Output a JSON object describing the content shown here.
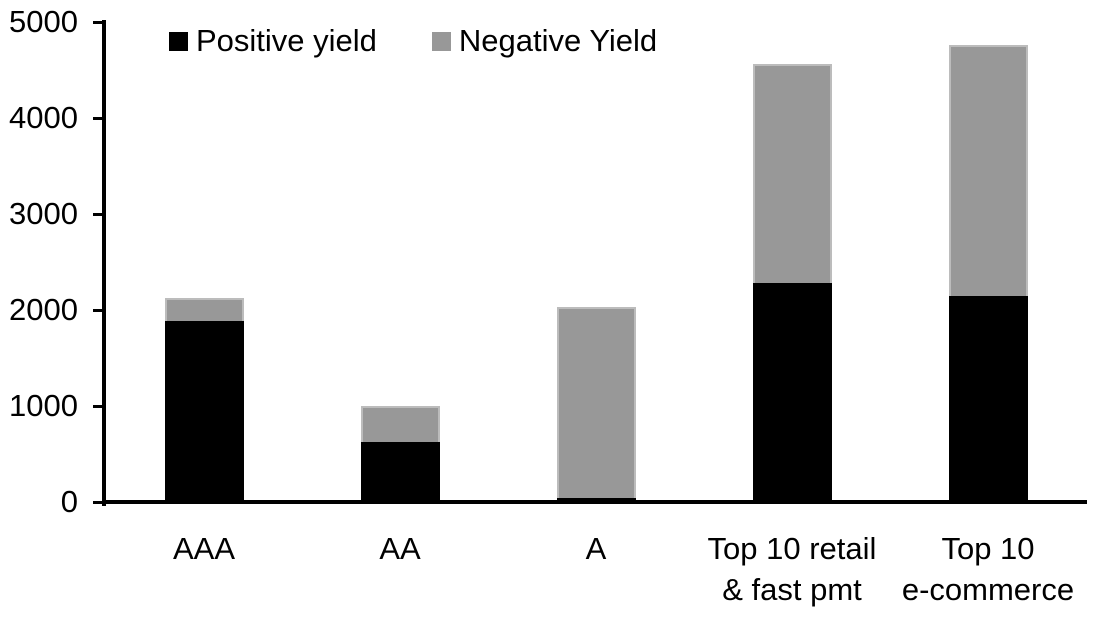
{
  "chart_data": {
    "type": "bar",
    "stacked": true,
    "title": "",
    "xlabel": "",
    "ylabel": "",
    "categories": [
      "AAA",
      "AA",
      "A",
      "Top 10 retail\n& fast pmt",
      "Top 10\ne-commerce"
    ],
    "series": [
      {
        "name": "Positive yield",
        "color": "#000000",
        "values": [
          1890,
          620,
          40,
          2280,
          2150
        ]
      },
      {
        "name": "Negative Yield",
        "color": "#989898",
        "border_color": "#bcbcbc",
        "values": [
          230,
          380,
          1990,
          2280,
          2610
        ]
      }
    ],
    "ylim": [
      0,
      5000
    ],
    "yticks": [
      0,
      1000,
      2000,
      3000,
      4000,
      5000
    ],
    "legend_position": "top",
    "grid": false,
    "background_color": "#ffffff",
    "axis_color": "#000000",
    "text_color": "#000000"
  }
}
